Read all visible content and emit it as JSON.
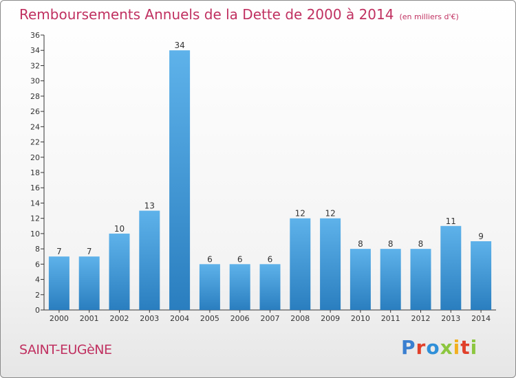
{
  "title": "Remboursements Annuels de la Dette de 2000 à 2014",
  "unit": "(en milliers d'€)",
  "commune": "SAINT-EUGèNE",
  "brand": {
    "text": "Proxiti",
    "letter_colors": [
      "#3a7fd0",
      "#e0402a",
      "#2f8fd8",
      "#8cc63f",
      "#f2b020",
      "#e0402a",
      "#8cc63f"
    ]
  },
  "colors": {
    "title": "#c03060",
    "bar_top": "#5eb2ea",
    "bar_bottom": "#2a7ebf"
  },
  "chart_data": {
    "type": "bar",
    "title": "Remboursements Annuels de la Dette de 2000 à 2014",
    "xlabel": "",
    "ylabel": "",
    "ylim": [
      0,
      36
    ],
    "yticks": [
      0,
      2,
      4,
      6,
      8,
      10,
      12,
      14,
      16,
      18,
      20,
      22,
      24,
      26,
      28,
      30,
      32,
      34,
      36
    ],
    "grid": false,
    "categories": [
      "2000",
      "2001",
      "2002",
      "2003",
      "2004",
      "2005",
      "2006",
      "2007",
      "2008",
      "2009",
      "2010",
      "2011",
      "2012",
      "2013",
      "2014"
    ],
    "values": [
      7,
      7,
      10,
      13,
      34,
      6,
      6,
      6,
      12,
      12,
      8,
      8,
      8,
      11,
      9
    ]
  }
}
